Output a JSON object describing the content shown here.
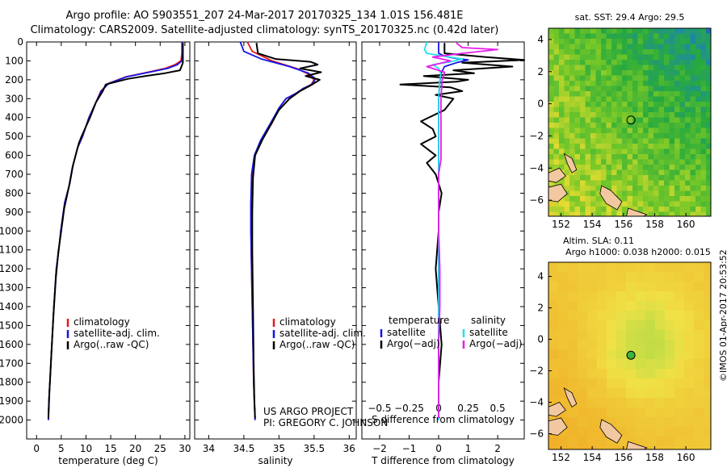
{
  "header": {
    "line1": "Argo profile: AO 5903551_207 24-Mar-2017 20170325_134 1.01S 156.481E",
    "line2": "Climatology: CARS2009. Satellite-adjusted climatology: synTS_20170325.nc (0.42d later)"
  },
  "chart_data": [
    {
      "type": "line",
      "name": "temperature-profile",
      "xlabel": "temperature (deg C)",
      "ylabel": "",
      "xlim": [
        -2,
        31
      ],
      "ylim": [
        2100,
        0
      ],
      "xticks": [
        0,
        5,
        10,
        15,
        20,
        25,
        30
      ],
      "yticks": [
        0,
        100,
        200,
        300,
        400,
        500,
        600,
        700,
        800,
        900,
        1000,
        1100,
        1200,
        1300,
        1400,
        1500,
        1600,
        1700,
        1800,
        1900,
        2000
      ],
      "legend": [
        "climatology",
        "satellite-adj. clim.",
        "Argo(..raw -QC)"
      ],
      "series": [
        {
          "name": "climatology",
          "color": "#e8161b",
          "x": [
            29.4,
            29.4,
            29.2,
            28.0,
            26.0,
            22.5,
            18.0,
            14.5,
            13.0,
            12.0,
            10.6,
            9.3,
            8.3,
            7.4,
            6.7,
            5.7,
            4.9,
            4.5,
            4.0,
            3.5,
            3.1,
            2.9,
            2.7,
            2.5,
            2.4
          ],
          "y": [
            0,
            60,
            100,
            120,
            140,
            160,
            185,
            220,
            260,
            320,
            400,
            500,
            560,
            650,
            750,
            850,
            1000,
            1100,
            1200,
            1400,
            1600,
            1700,
            1800,
            1900,
            2000
          ]
        },
        {
          "name": "satellite-adj. clim.",
          "color": "#1414e8",
          "x": [
            29.5,
            29.5,
            29.4,
            28.5,
            26.5,
            22.8,
            18.2,
            14.6,
            13.1,
            12.0,
            10.6,
            9.3,
            8.3,
            7.4,
            6.7,
            5.7,
            4.9,
            4.5,
            4.0,
            3.5,
            3.1,
            2.9,
            2.7,
            2.5,
            2.4
          ],
          "y": [
            0,
            60,
            100,
            120,
            140,
            160,
            185,
            220,
            260,
            320,
            400,
            500,
            560,
            650,
            750,
            850,
            1000,
            1100,
            1200,
            1400,
            1600,
            1700,
            1800,
            1900,
            2000
          ]
        },
        {
          "name": "Argo(..raw -QC)",
          "color": "#000000",
          "x": [
            29.6,
            29.6,
            29.6,
            29.3,
            29.0,
            26.0,
            22.0,
            18.5,
            14.0,
            13.4,
            12.0,
            10.8,
            9.1,
            8.5,
            7.3,
            6.6,
            5.6,
            5.0,
            4.4,
            3.9,
            3.4,
            3.0,
            2.8,
            2.6,
            2.4
          ],
          "y": [
            5,
            60,
            110,
            130,
            150,
            165,
            180,
            195,
            225,
            260,
            320,
            400,
            500,
            540,
            660,
            760,
            880,
            1000,
            1110,
            1250,
            1450,
            1650,
            1750,
            1850,
            1990
          ]
        }
      ]
    },
    {
      "type": "line",
      "name": "salinity-profile",
      "xlabel": "salinity",
      "xlim": [
        33.8,
        36.1
      ],
      "ylim": [
        2100,
        0
      ],
      "xticks": [
        34,
        34.5,
        35,
        35.5,
        36
      ],
      "xticklabels": [
        "34",
        "34.5",
        "35",
        "35.5",
        "36"
      ],
      "legend": [
        "climatology",
        "satellite-adj. clim.",
        "Argo(..raw -QC)"
      ],
      "series": [
        {
          "name": "climatology",
          "color": "#e8161b",
          "x": [
            34.55,
            34.62,
            34.9,
            35.25,
            35.42,
            35.5,
            35.46,
            35.35,
            35.25,
            35.1,
            35.0,
            34.9,
            34.75,
            34.66,
            34.62,
            34.6,
            34.6,
            34.61,
            34.62,
            34.63,
            34.64,
            34.65,
            34.66
          ],
          "y": [
            0,
            50,
            100,
            140,
            170,
            200,
            225,
            245,
            270,
            300,
            350,
            430,
            520,
            600,
            700,
            850,
            1000,
            1200,
            1400,
            1600,
            1800,
            1900,
            2000
          ]
        },
        {
          "name": "satellite-adj. clim.",
          "color": "#1414e8",
          "x": [
            34.45,
            34.5,
            34.75,
            35.15,
            35.42,
            35.52,
            35.47,
            35.35,
            35.25,
            35.1,
            35.0,
            34.88,
            34.74,
            34.65,
            34.61,
            34.6,
            34.6,
            34.61,
            34.62,
            34.63,
            34.64,
            34.65,
            34.66
          ],
          "y": [
            0,
            50,
            90,
            130,
            165,
            195,
            225,
            245,
            270,
            300,
            350,
            430,
            520,
            600,
            700,
            850,
            1000,
            1200,
            1400,
            1600,
            1800,
            1900,
            2000
          ]
        },
        {
          "name": "Argo(..raw -QC)",
          "color": "#000000",
          "x": [
            34.68,
            34.7,
            34.95,
            35.45,
            35.55,
            35.3,
            35.6,
            35.38,
            35.58,
            35.45,
            35.3,
            35.15,
            35.0,
            34.88,
            34.76,
            34.66,
            34.63,
            34.62,
            34.62,
            34.63,
            34.64,
            34.65,
            34.66
          ],
          "y": [
            5,
            60,
            90,
            105,
            120,
            140,
            160,
            180,
            200,
            230,
            260,
            300,
            360,
            440,
            520,
            600,
            720,
            900,
            1100,
            1400,
            1700,
            1900,
            1990
          ]
        }
      ]
    },
    {
      "type": "line",
      "name": "difference-profile",
      "xlabel": "T difference from climatology",
      "x2label": "S difference from climatology",
      "xlim": [
        -2.6,
        2.9
      ],
      "x2lim": [
        -0.65,
        0.725
      ],
      "ylim": [
        2100,
        0
      ],
      "xticks": [
        -2,
        -1,
        0,
        1,
        2
      ],
      "xticklabels": [
        "−2",
        "−1",
        "0",
        "1",
        "2"
      ],
      "x2ticks": [
        -0.5,
        -0.25,
        0,
        0.25,
        0.5
      ],
      "x2ticklabels": [
        "−0.5",
        "−0.25",
        "0",
        "0.25",
        "0.5"
      ],
      "legend_headers": [
        "temperature",
        "salinity"
      ],
      "legend": [
        "satellite",
        "Argo(−adj)",
        "satellite",
        "Argo(−adj)"
      ],
      "series": [
        {
          "name": "temperature satellite",
          "color": "#1414e8",
          "units": "degC",
          "x": [
            0.0,
            0.0,
            0.2,
            0.5,
            1.0,
            0.6,
            0.2,
            0.1,
            0.05,
            0.0,
            0.0,
            0.0,
            0.0,
            0.0,
            0.0,
            0.0
          ],
          "y": [
            0,
            60,
            75,
            85,
            95,
            110,
            130,
            160,
            200,
            300,
            500,
            800,
            1100,
            1500,
            1800,
            2000
          ]
        },
        {
          "name": "temperature Argo",
          "color": "#000000",
          "units": "degC",
          "x": [
            0.2,
            0.2,
            1.6,
            2.9,
            0.8,
            2.5,
            0.5,
            1.2,
            -0.5,
            1.0,
            0.6,
            -1.3,
            0.4,
            0.8,
            -0.1,
            0.5,
            0.2,
            -0.6,
            -0.2,
            -0.1,
            -0.6,
            -0.1,
            -0.4,
            -0.1,
            0.1,
            0.0,
            0.0,
            -0.1,
            0.0,
            0.1,
            0.0,
            0.0
          ],
          "y": [
            5,
            60,
            80,
            95,
            110,
            130,
            150,
            165,
            180,
            200,
            210,
            225,
            240,
            260,
            280,
            300,
            360,
            420,
            460,
            500,
            540,
            600,
            640,
            700,
            800,
            900,
            1000,
            1200,
            1400,
            1600,
            1800,
            1990
          ]
        },
        {
          "name": "salinity satellite",
          "color": "#22e0e8",
          "units": "psu",
          "x": [
            -0.1,
            -0.12,
            -0.1,
            0.05,
            0.2,
            0.1,
            -0.05,
            0.0,
            0.02,
            0.01,
            0.0,
            0.0,
            0.0,
            0.0,
            0.0,
            0.0,
            0.0
          ],
          "y": [
            0,
            40,
            60,
            75,
            90,
            105,
            120,
            140,
            170,
            200,
            300,
            500,
            800,
            1100,
            1500,
            1800,
            2000
          ]
        },
        {
          "name": "salinity Argo",
          "color": "#e81ce8",
          "units": "psu",
          "x": [
            0.15,
            0.2,
            0.5,
            0.2,
            -0.05,
            0.1,
            -0.1,
            0.05,
            0.03,
            0.02,
            0.02,
            0.02,
            0.0,
            0.0,
            0.0,
            0.01,
            0.01,
            0.0,
            0.0,
            0.0
          ],
          "y": [
            5,
            30,
            40,
            60,
            80,
            100,
            130,
            160,
            200,
            300,
            500,
            620,
            700,
            800,
            1000,
            1200,
            1400,
            1600,
            1800,
            1990
          ]
        }
      ]
    },
    {
      "type": "heatmap",
      "name": "sst-map",
      "title": "sat. SST: 29.4 Argo: 29.5",
      "xlim": [
        151.2,
        161.6
      ],
      "ylim": [
        -7.0,
        4.7
      ],
      "xticks": [
        152,
        154,
        156,
        158,
        160
      ],
      "yticks": [
        -6,
        -4,
        -2,
        0,
        2,
        4
      ],
      "marker": {
        "lon": 156.481,
        "lat": -1.01
      }
    },
    {
      "type": "heatmap",
      "name": "sla-map",
      "title_line1": "Altim. SLA: 0.11",
      "title_line2": "Argo h1000: 0.038 h2000: 0.015",
      "xlim": [
        151.2,
        161.6
      ],
      "ylim": [
        -7.0,
        4.9
      ],
      "xticks": [
        152,
        154,
        156,
        158,
        160
      ],
      "yticks": [
        -6,
        -4,
        -2,
        0,
        2,
        4
      ],
      "marker": {
        "lon": 156.481,
        "lat": -1.01
      }
    }
  ],
  "footer": {
    "project": "US ARGO PROJECT",
    "pi": "PI: GREGORY C. JOHNSON",
    "stamp": "©IMOS 01-Apr-2017 20:53:52"
  }
}
